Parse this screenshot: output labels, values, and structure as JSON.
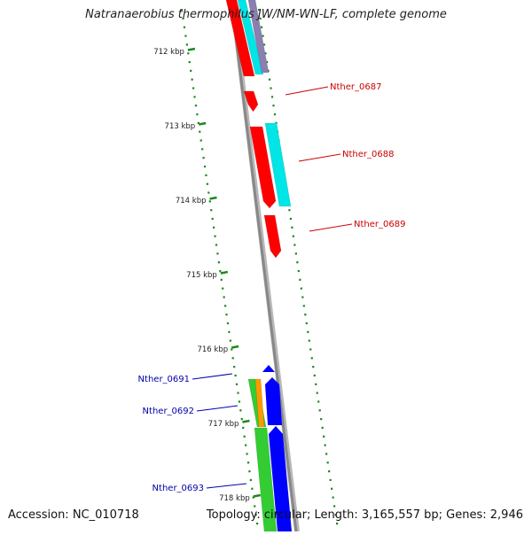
{
  "title": "Natranaerobius thermophilus JW/NM-WN-LF, complete genome",
  "accession": "Accession: NC_010718",
  "topology": "Topology: circular; Length: 3,165,557 bp; Genes: 2,946",
  "ticks": [
    {
      "label": "712 kbp",
      "kbp": 712
    },
    {
      "label": "713 kbp",
      "kbp": 713
    },
    {
      "label": "714 kbp",
      "kbp": 714
    },
    {
      "label": "715 kbp",
      "kbp": 715
    },
    {
      "label": "716 kbp",
      "kbp": 716
    },
    {
      "label": "717 kbp",
      "kbp": 717
    },
    {
      "label": "718 kbp",
      "kbp": 718
    }
  ],
  "gene_labels": [
    {
      "name": "Nther_0687",
      "color": "#cc0000"
    },
    {
      "name": "Nther_0688",
      "color": "#cc0000"
    },
    {
      "name": "Nther_0689",
      "color": "#cc0000"
    },
    {
      "name": "Nther_0691",
      "color": "#0000aa"
    },
    {
      "name": "Nther_0692",
      "color": "#0000aa"
    },
    {
      "name": "Nther_0693",
      "color": "#0000aa"
    }
  ],
  "colors": {
    "backbone": "#888888",
    "tick_marks": "#1a8a1a",
    "red_feature": "#ff0000",
    "cyan_feature": "#00e5e5",
    "blue_feature": "#0000ff",
    "green_feature": "#33cc33",
    "orange_feature": "#ff9900",
    "purple_feature": "#8a7fb0"
  }
}
